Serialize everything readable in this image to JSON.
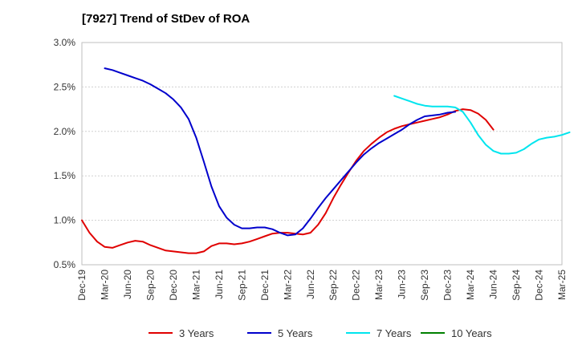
{
  "chart_data": {
    "type": "line",
    "title": "[7927]  Trend of StDev of ROA",
    "xlabel": "",
    "ylabel": "",
    "x_tick_labels": [
      "Dec-19",
      "Mar-20",
      "Jun-20",
      "Sep-20",
      "Dec-20",
      "Mar-21",
      "Jun-21",
      "Sep-21",
      "Dec-21",
      "Mar-22",
      "Jun-22",
      "Sep-22",
      "Dec-22",
      "Mar-23",
      "Jun-23",
      "Sep-23",
      "Dec-23",
      "Mar-24",
      "Jun-24",
      "Sep-24",
      "Dec-24",
      "Mar-25"
    ],
    "y_tick_labels": [
      "0.5%",
      "1.0%",
      "1.5%",
      "2.0%",
      "2.5%",
      "3.0%"
    ],
    "ylim": [
      0.5,
      3.0
    ],
    "grid": true,
    "legend_position": "bottom",
    "series": [
      {
        "name": "3 Years",
        "color": "#e00000",
        "values": [
          1.0,
          0.86,
          0.76,
          0.7,
          0.69,
          0.72,
          0.75,
          0.77,
          0.76,
          0.72,
          0.69,
          0.66,
          0.65,
          0.64,
          0.63,
          0.63,
          0.65,
          0.71,
          0.74,
          0.74,
          0.73,
          0.74,
          0.76,
          0.79,
          0.82,
          0.85,
          0.86,
          0.86,
          0.85,
          0.84,
          0.86,
          0.95,
          1.08,
          1.25,
          1.4,
          1.54,
          1.67,
          1.78,
          1.86,
          1.93,
          1.99,
          2.03,
          2.06,
          2.08,
          2.1,
          2.12,
          2.14,
          2.16,
          2.19,
          2.23,
          2.25,
          2.24,
          2.2,
          2.13,
          2.02
        ]
      },
      {
        "name": "5 Years",
        "color": "#0000cc",
        "values": [
          null,
          null,
          null,
          2.71,
          2.69,
          2.66,
          2.63,
          2.6,
          2.57,
          2.53,
          2.48,
          2.43,
          2.36,
          2.27,
          2.14,
          1.93,
          1.66,
          1.38,
          1.16,
          1.03,
          0.95,
          0.91,
          0.91,
          0.92,
          0.92,
          0.9,
          0.86,
          0.83,
          0.84,
          0.91,
          1.02,
          1.14,
          1.25,
          1.35,
          1.45,
          1.55,
          1.65,
          1.74,
          1.81,
          1.87,
          1.92,
          1.97,
          2.02,
          2.08,
          2.13,
          2.17,
          2.18,
          2.19,
          2.21,
          2.22
        ]
      },
      {
        "name": "7 Years",
        "color": "#00e5ee",
        "values": [
          null,
          null,
          null,
          null,
          null,
          null,
          null,
          null,
          null,
          null,
          null,
          null,
          null,
          null,
          null,
          null,
          null,
          null,
          null,
          null,
          null,
          null,
          null,
          null,
          null,
          null,
          null,
          null,
          null,
          null,
          null,
          null,
          null,
          null,
          null,
          null,
          null,
          null,
          null,
          null,
          null,
          2.4,
          2.37,
          2.34,
          2.31,
          2.29,
          2.28,
          2.28,
          2.28,
          2.27,
          2.22,
          2.1,
          1.96,
          1.85,
          1.78,
          1.75,
          1.75,
          1.76,
          1.8,
          1.86,
          1.91,
          1.93,
          1.94,
          1.96,
          1.99
        ]
      },
      {
        "name": "10 Years",
        "color": "#008000",
        "values": []
      }
    ]
  }
}
